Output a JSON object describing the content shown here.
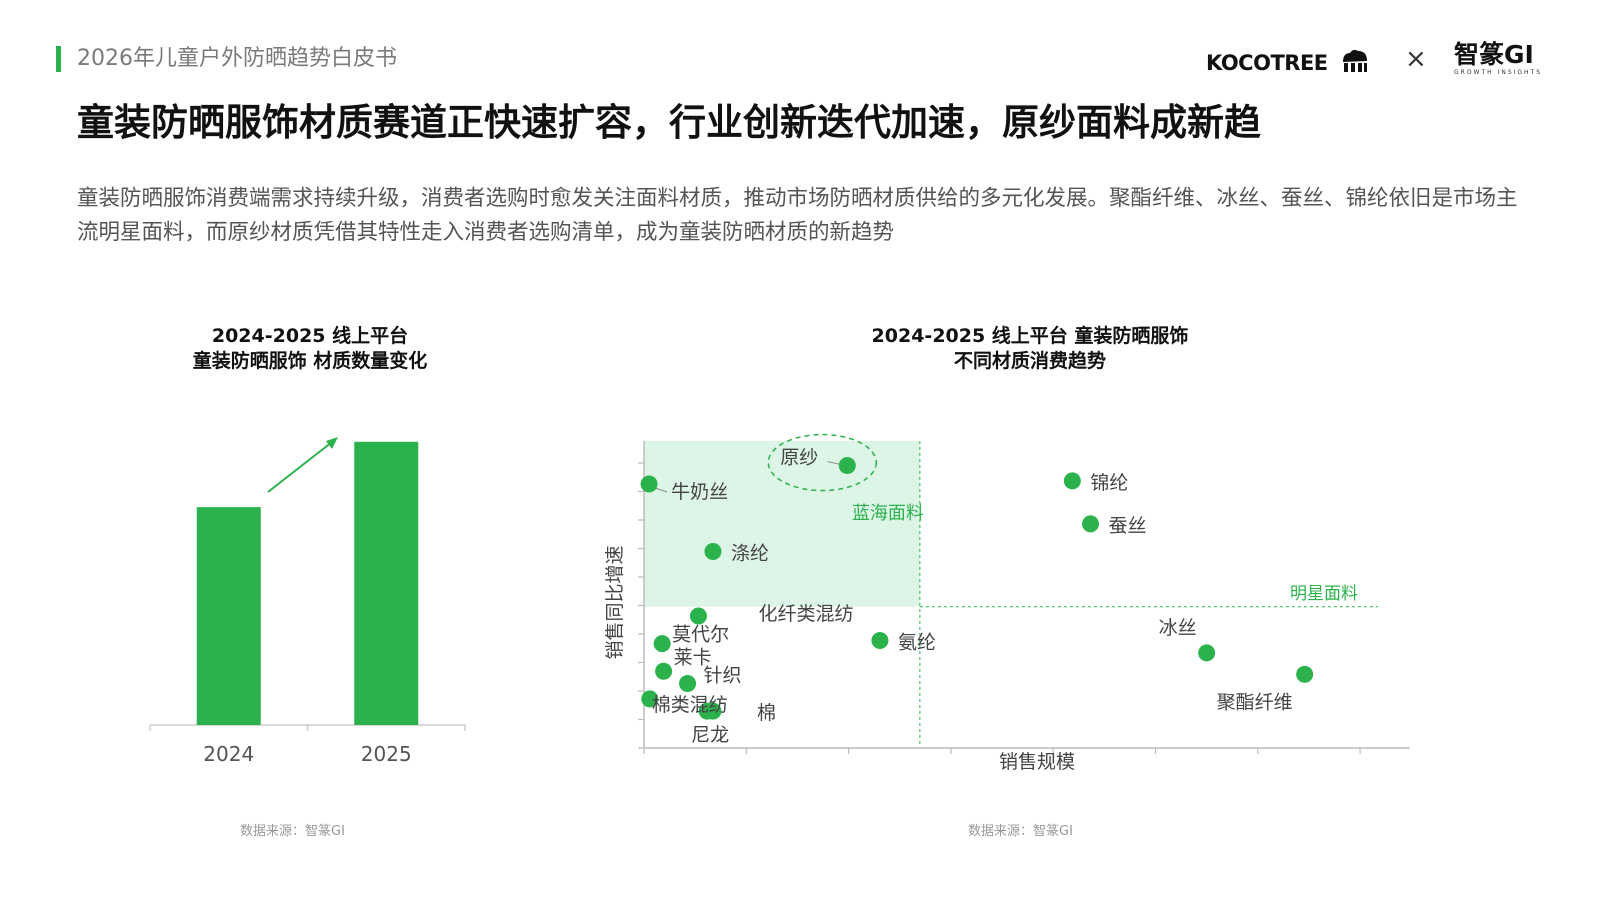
{
  "header": {
    "report_title": "2026年儿童户外防晒趋势白皮书",
    "brand_left": "KOCOTREE",
    "brand_sep": "×",
    "brand_right": "智篆GI",
    "brand_right_sub": "GROWTH INSIGHTS",
    "accent_color": "#2bb24c"
  },
  "main_title": "童装防晒服饰材质赛道正快速扩容，行业创新迭代加速，原纱面料成新趋",
  "description": "童装防晒服饰消费端需求持续升级，消费者选购时愈发关注面料材质，推动市场防晒材质供给的多元化发展。聚酯纤维、冰丝、蚕丝、锦纶依旧是市场主流明星面料，而原纱材质凭借其特性走入消费者选购清单，成为童装防晒材质的新趋势",
  "chart_data": [
    {
      "type": "bar",
      "title": "2024-2025 线上平台\n童装防晒服饰 材质数量变化",
      "title_line1": "2024-2025 线上平台",
      "title_line2": "童装防晒服饰 材质数量变化",
      "categories": [
        "2024",
        "2025"
      ],
      "values": [
        200,
        260
      ],
      "ylim": [
        0,
        280
      ],
      "grid": false,
      "trend_arrow": "up",
      "color": "#2bb24c",
      "source": "数据来源：智篆GI"
    },
    {
      "type": "scatter",
      "title": "2024-2025 线上平台 童装防晒服饰\n不同材质消费趋势",
      "title_line1": "2024-2025 线上平台 童装防晒服饰",
      "title_line2": "不同材质消费趋势",
      "xlabel": "销售规模",
      "ylabel": "销售同比增速",
      "xlim": [
        0,
        100
      ],
      "ylim": [
        0,
        100
      ],
      "x_divider": 38,
      "y_divider": 46,
      "quadrant_labels": {
        "blue_ocean": "蓝海面料",
        "star": "明星面料"
      },
      "points": [
        {
          "label": "原纱",
          "x": 28,
          "y": 92,
          "highlight": true
        },
        {
          "label": "牛奶丝",
          "x": 0.7,
          "y": 86
        },
        {
          "label": "涤纶",
          "x": 9.5,
          "y": 64
        },
        {
          "label": "锦纶",
          "x": 59,
          "y": 87
        },
        {
          "label": "蚕丝",
          "x": 61.5,
          "y": 73
        },
        {
          "label": "化纤类混纺",
          "x": 7.5,
          "y": 43
        },
        {
          "label": "莫代尔",
          "x": 2.5,
          "y": 34
        },
        {
          "label": "莱卡",
          "x": 2.7,
          "y": 25
        },
        {
          "label": "针织",
          "x": 6,
          "y": 21
        },
        {
          "label": "棉类混纺",
          "x": 0.8,
          "y": 16
        },
        {
          "label": "棉",
          "x": 9.5,
          "y": 12
        },
        {
          "label": "尼龙",
          "x": 8.7,
          "y": 12
        },
        {
          "label": "氨纶",
          "x": 32.5,
          "y": 35
        },
        {
          "label": "冰丝",
          "x": 77.5,
          "y": 31
        },
        {
          "label": "聚酯纤维",
          "x": 91,
          "y": 24
        }
      ],
      "color": "#2bb24c",
      "quadrant_fill": "#dcf5e6",
      "source": "数据来源：智篆GI"
    }
  ]
}
